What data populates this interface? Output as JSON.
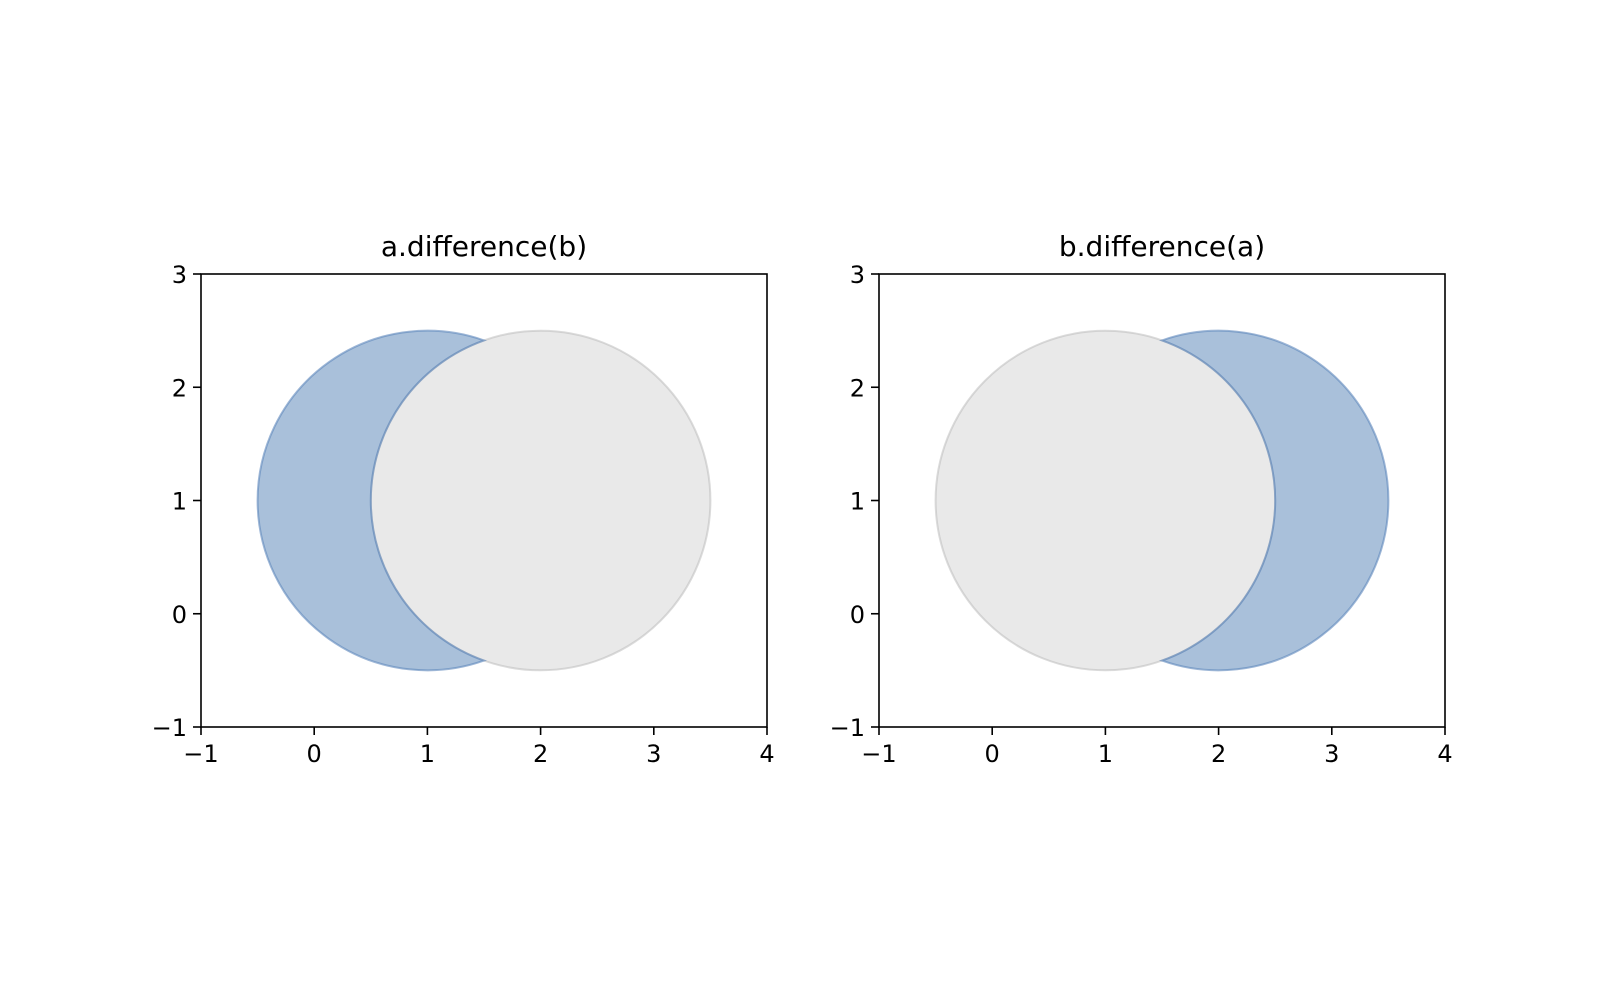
{
  "chart_data": [
    {
      "type": "shapes",
      "title": "a.difference(b)",
      "xlabel": "",
      "ylabel": "",
      "xlim": [
        -1,
        4
      ],
      "ylim": [
        -1,
        3
      ],
      "xticks": [
        -1,
        0,
        1,
        2,
        3,
        4
      ],
      "yticks": [
        -1,
        0,
        1,
        2,
        3
      ],
      "xtick_labels": [
        "−1",
        "0",
        "1",
        "2",
        "3",
        "4"
      ],
      "ytick_labels": [
        "−1",
        "0",
        "1",
        "2",
        "3"
      ],
      "grid": false,
      "shapes": [
        {
          "kind": "circle",
          "center": [
            2,
            1
          ],
          "radius": 1.5,
          "style": "reference"
        },
        {
          "kind": "difference",
          "base": {
            "center": [
              1,
              1
            ],
            "radius": 1.5
          },
          "minus": {
            "center": [
              2,
              1
            ],
            "radius": 1.5
          },
          "style": "result"
        }
      ]
    },
    {
      "type": "shapes",
      "title": "b.difference(a)",
      "xlabel": "",
      "ylabel": "",
      "xlim": [
        -1,
        4
      ],
      "ylim": [
        -1,
        3
      ],
      "xticks": [
        -1,
        0,
        1,
        2,
        3,
        4
      ],
      "yticks": [
        -1,
        0,
        1,
        2,
        3
      ],
      "xtick_labels": [
        "−1",
        "0",
        "1",
        "2",
        "3",
        "4"
      ],
      "ytick_labels": [
        "−1",
        "0",
        "1",
        "2",
        "3"
      ],
      "grid": false,
      "shapes": [
        {
          "kind": "circle",
          "center": [
            1,
            1
          ],
          "radius": 1.5,
          "style": "reference"
        },
        {
          "kind": "difference",
          "base": {
            "center": [
              2,
              1
            ],
            "radius": 1.5
          },
          "minus": {
            "center": [
              1,
              1
            ],
            "radius": 1.5
          },
          "style": "result"
        }
      ]
    }
  ],
  "colors": {
    "result_fill": "#6f96c2",
    "result_stroke": "#5c86bb",
    "reference_fill": "#d4d4d4",
    "reference_stroke": "#b8b8b8",
    "axis": "#000000"
  }
}
